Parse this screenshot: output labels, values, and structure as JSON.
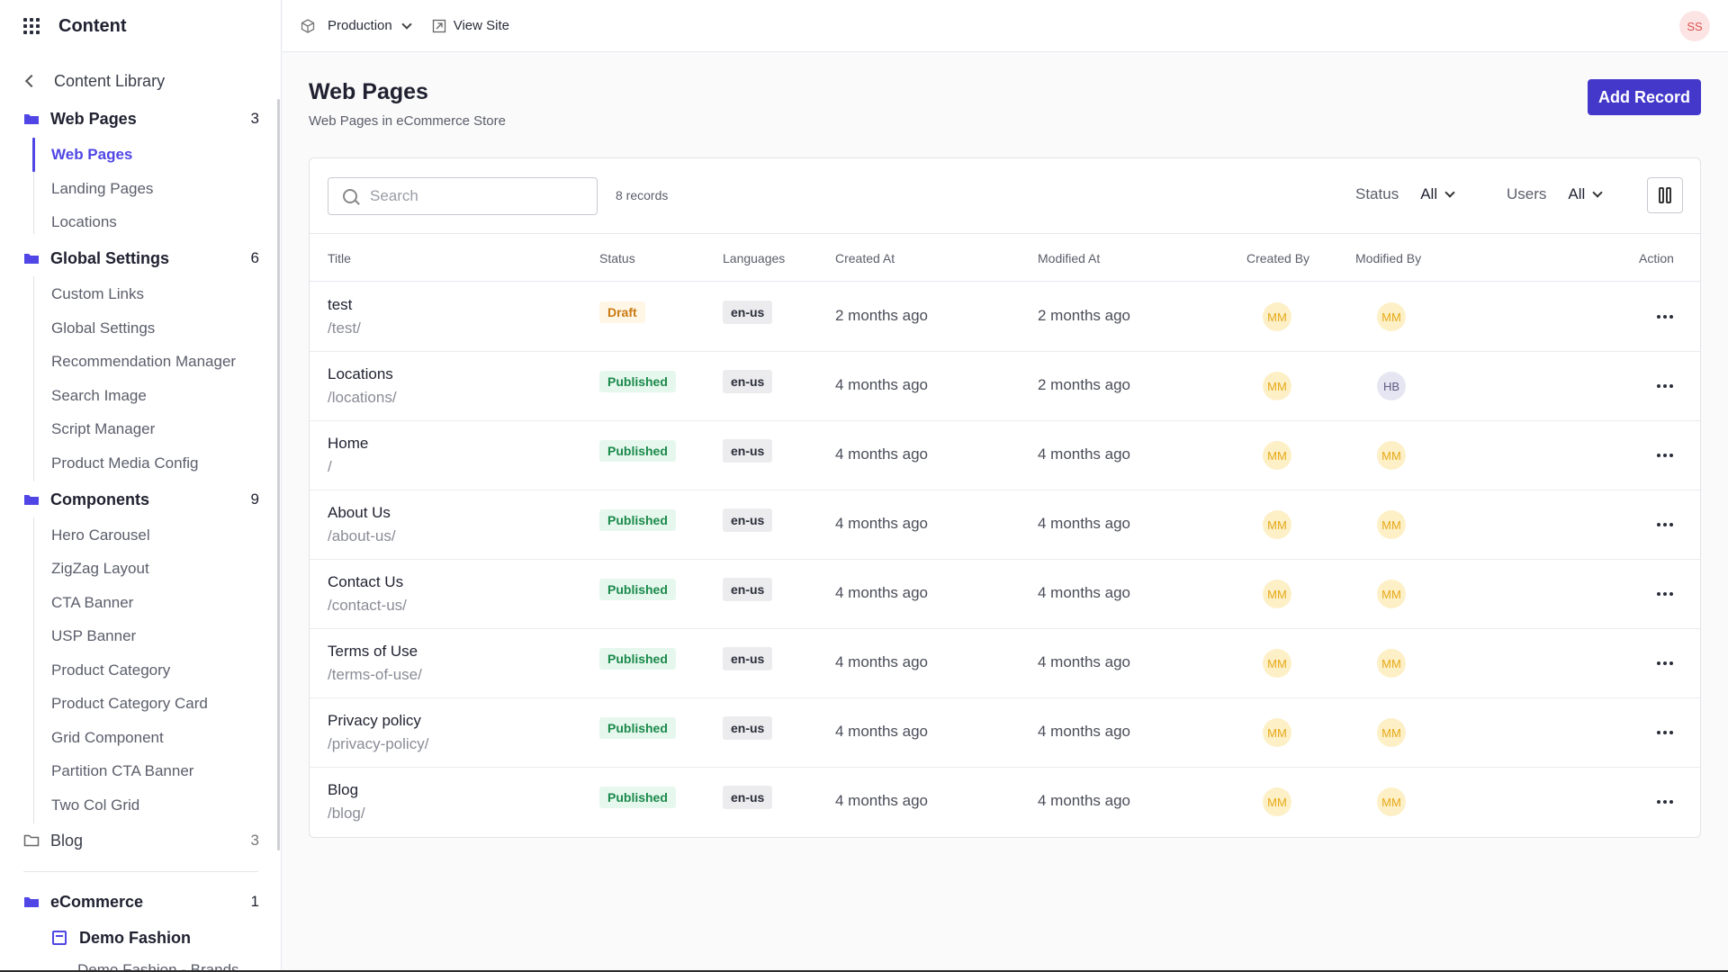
{
  "sidebar": {
    "title": "Content",
    "back_label": "Content Library",
    "groups": {
      "web_pages": {
        "label": "Web Pages",
        "count": "3",
        "items": [
          "Web Pages",
          "Landing Pages",
          "Locations"
        ]
      },
      "global_settings": {
        "label": "Global Settings",
        "count": "6",
        "items": [
          "Custom Links",
          "Global Settings",
          "Recommendation Manager",
          "Search Image",
          "Script Manager",
          "Product Media Config"
        ]
      },
      "components": {
        "label": "Components",
        "count": "9",
        "items": [
          "Hero Carousel",
          "ZigZag Layout",
          "CTA Banner",
          "USP Banner",
          "Product Category",
          "Product Category Card",
          "Grid Component",
          "Partition CTA Banner",
          "Two Col Grid"
        ]
      },
      "blog": {
        "label": "Blog",
        "count": "3"
      },
      "ecommerce": {
        "label": "eCommerce",
        "count": "1",
        "store": "Demo Fashion",
        "cut_item": "Demo Fashion - Brands"
      }
    }
  },
  "topbar": {
    "environment": "Production",
    "view_site": "View Site",
    "user_initials": "SS"
  },
  "page": {
    "title": "Web Pages",
    "subtitle": "Web Pages in eCommerce Store",
    "add_button": "Add Record"
  },
  "toolbar": {
    "search_placeholder": "Search",
    "records": "8 records",
    "status_label": "Status",
    "status_value": "All",
    "users_label": "Users",
    "users_value": "All"
  },
  "table": {
    "headers": {
      "title": "Title",
      "status": "Status",
      "languages": "Languages",
      "created_at": "Created At",
      "modified_at": "Modified At",
      "created_by": "Created By",
      "modified_by": "Modified By",
      "action": "Action"
    },
    "rows": [
      {
        "title": "test",
        "path": "/test/",
        "status": "Draft",
        "lang": "en-us",
        "created": "2 months ago",
        "modified": "2 months ago",
        "created_by": "MM",
        "modified_by": "MM"
      },
      {
        "title": "Locations",
        "path": "/locations/",
        "status": "Published",
        "lang": "en-us",
        "created": "4 months ago",
        "modified": "2 months ago",
        "created_by": "MM",
        "modified_by": "HB"
      },
      {
        "title": "Home",
        "path": "/",
        "status": "Published",
        "lang": "en-us",
        "created": "4 months ago",
        "modified": "4 months ago",
        "created_by": "MM",
        "modified_by": "MM"
      },
      {
        "title": "About Us",
        "path": "/about-us/",
        "status": "Published",
        "lang": "en-us",
        "created": "4 months ago",
        "modified": "4 months ago",
        "created_by": "MM",
        "modified_by": "MM"
      },
      {
        "title": "Contact Us",
        "path": "/contact-us/",
        "status": "Published",
        "lang": "en-us",
        "created": "4 months ago",
        "modified": "4 months ago",
        "created_by": "MM",
        "modified_by": "MM"
      },
      {
        "title": "Terms of Use",
        "path": "/terms-of-use/",
        "status": "Published",
        "lang": "en-us",
        "created": "4 months ago",
        "modified": "4 months ago",
        "created_by": "MM",
        "modified_by": "MM"
      },
      {
        "title": "Privacy policy",
        "path": "/privacy-policy/",
        "status": "Published",
        "lang": "en-us",
        "created": "4 months ago",
        "modified": "4 months ago",
        "created_by": "MM",
        "modified_by": "MM"
      },
      {
        "title": "Blog",
        "path": "/blog/",
        "status": "Published",
        "lang": "en-us",
        "created": "4 months ago",
        "modified": "4 months ago",
        "created_by": "MM",
        "modified_by": "MM"
      }
    ]
  },
  "colors": {
    "accent": "#4338ca",
    "draft": "#c97a12",
    "published": "#1b8a4a",
    "avatar_mm": "#e6a817"
  }
}
